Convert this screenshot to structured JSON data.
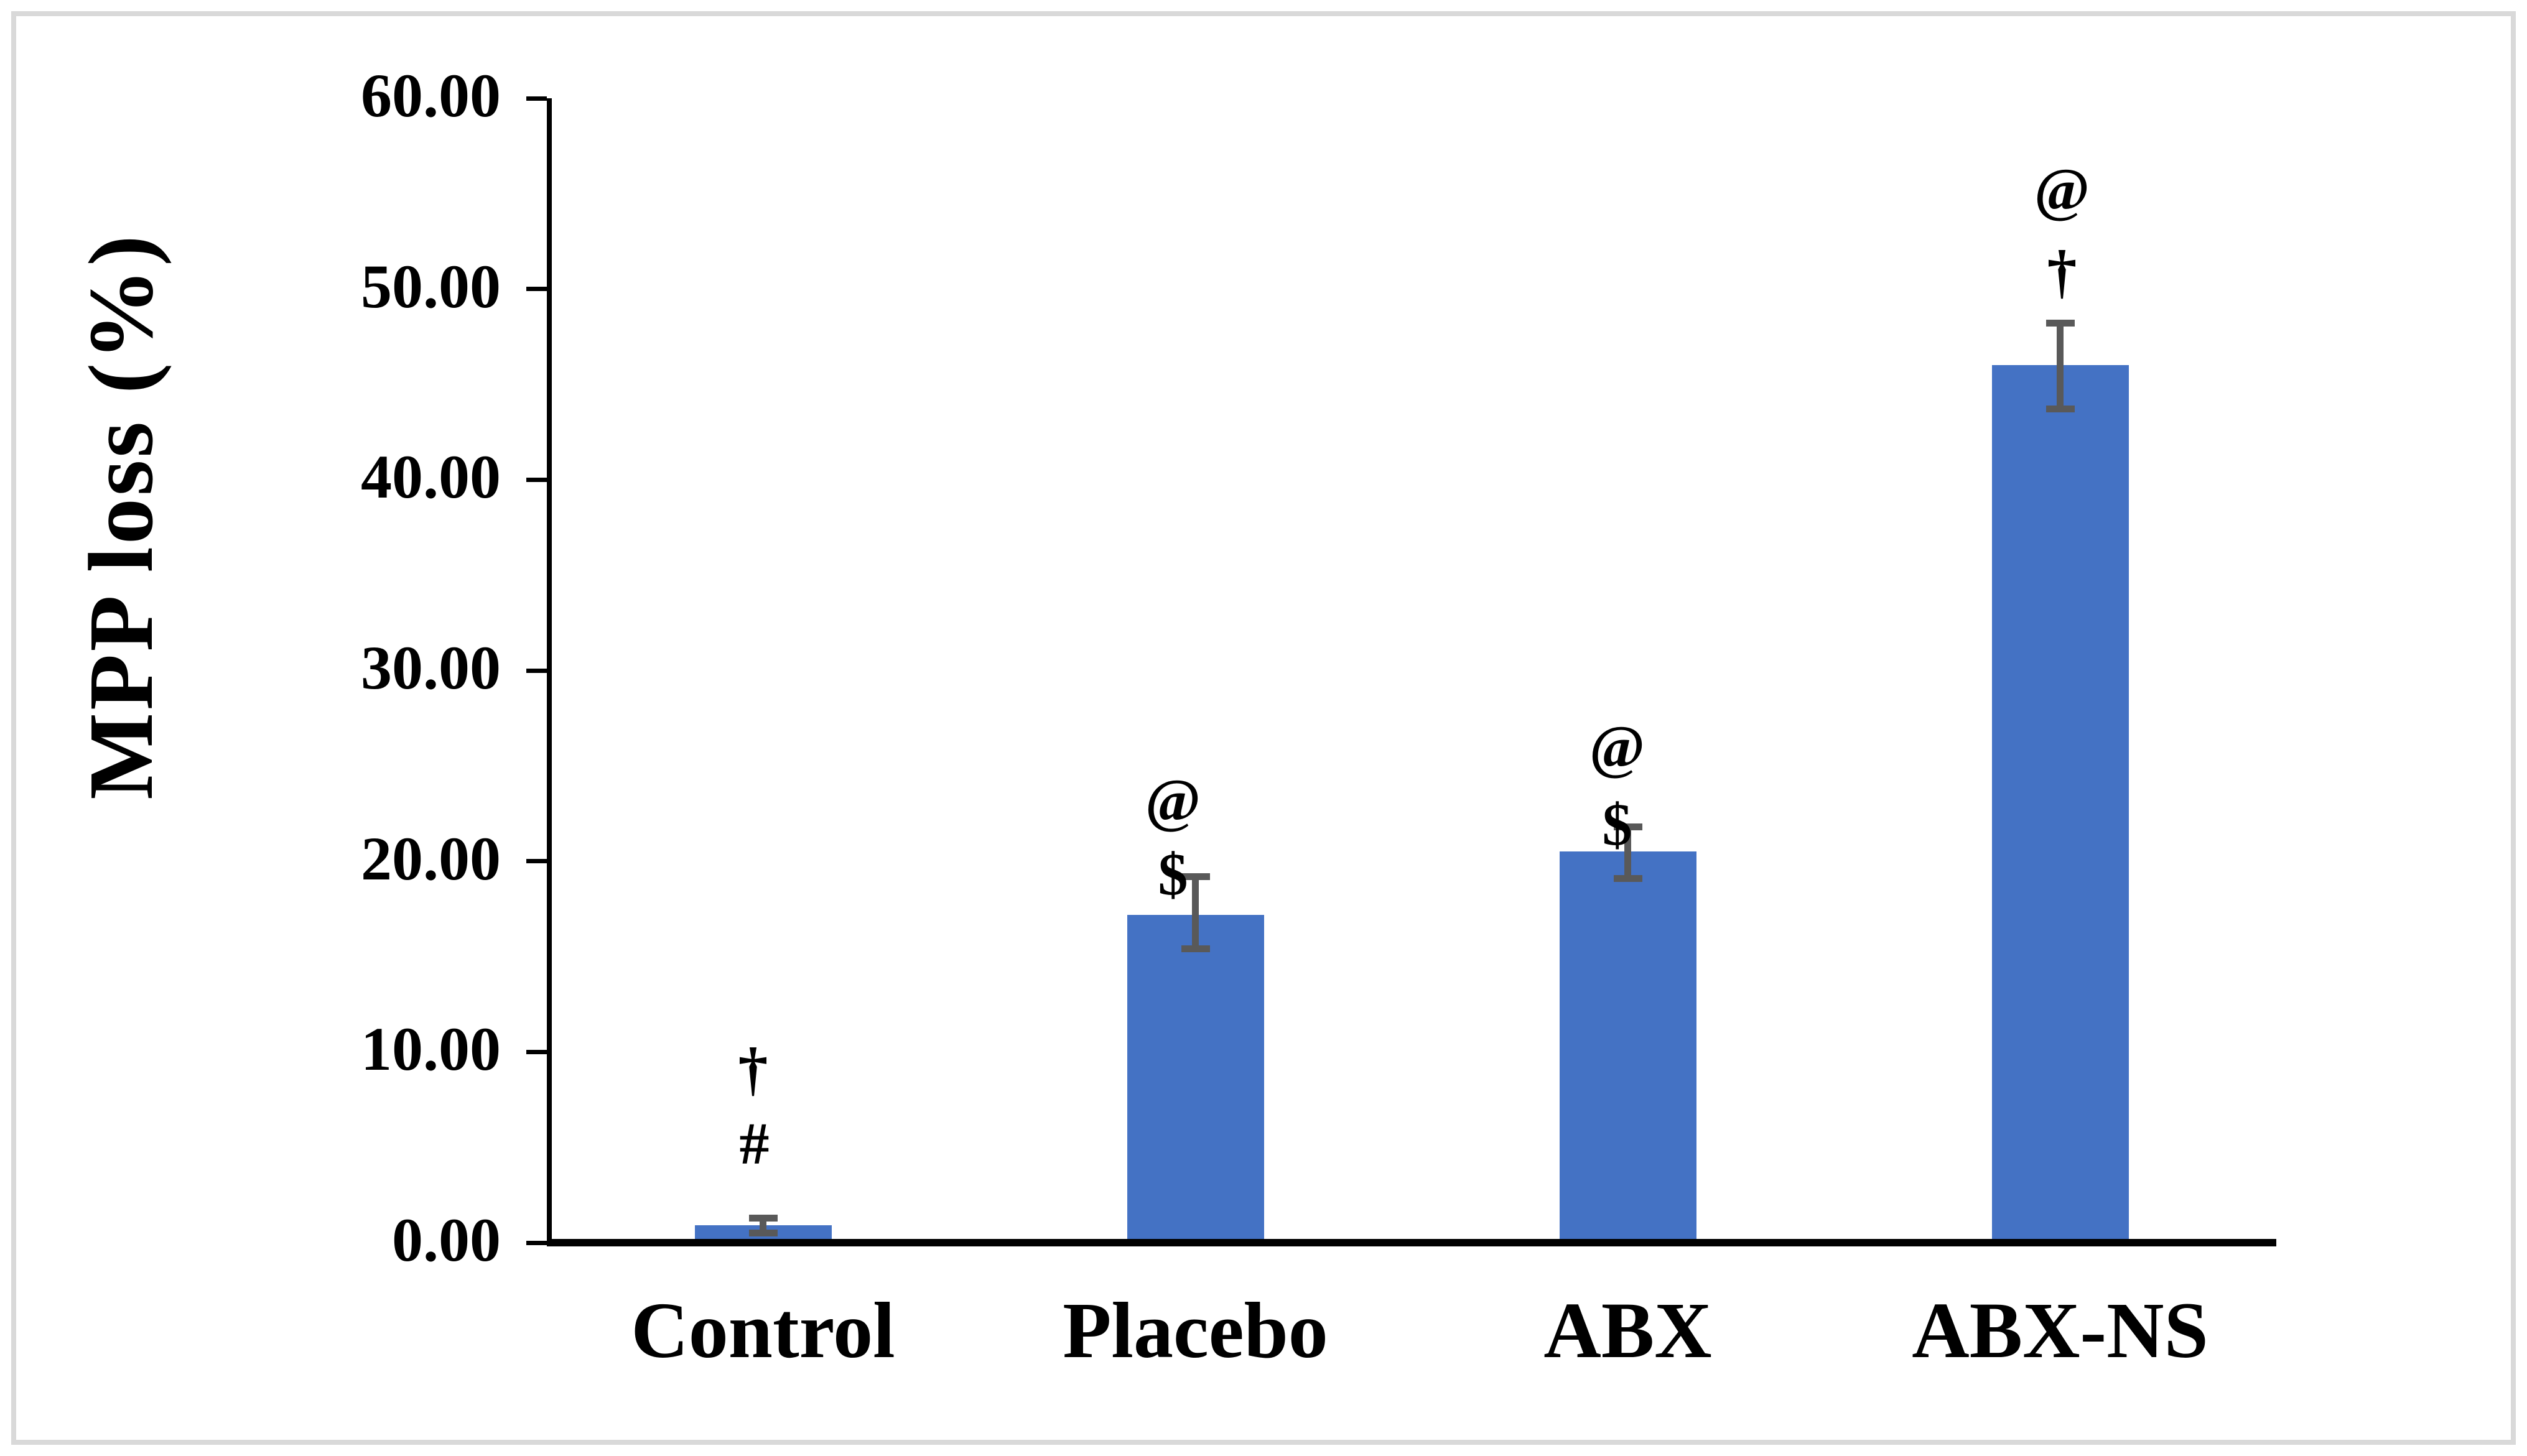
{
  "figure": {
    "background_color": "#ffffff",
    "border_color": "#d9d9d9"
  },
  "chart_data": {
    "type": "bar",
    "title": "",
    "xlabel": "",
    "ylabel": "MPP loss (%)",
    "ylim": [
      0,
      60
    ],
    "ytick_interval": 10,
    "ytick_labels": [
      "60.00",
      "50.00",
      "40.00",
      "30.00",
      "20.00",
      "10.00",
      "0.00"
    ],
    "grid": false,
    "legend": "none",
    "bar_color": "#4472c4",
    "error_bar_color": "#595959",
    "axis_color": "#000000",
    "text_color": "#000000",
    "categories": [
      "Control",
      "Placebo",
      "ABX",
      "ABX-NS"
    ],
    "values": [
      0.9,
      17.2,
      20.5,
      46.0
    ],
    "error_low": [
      0.5,
      15.4,
      19.1,
      43.7
    ],
    "error_high": [
      1.3,
      19.2,
      21.8,
      48.2
    ],
    "annotations": [
      [
        {
          "symbol": "†",
          "y_value": 9.1,
          "dx": -16
        },
        {
          "symbol": "#",
          "y_value": 5.2,
          "dx": -14
        }
      ],
      [
        {
          "symbol": "@",
          "y_value": 23.2,
          "dx": -36
        },
        {
          "symbol": "$",
          "y_value": 19.3,
          "dx": -36
        }
      ],
      [
        {
          "symbol": "@",
          "y_value": 26.0,
          "dx": -17
        },
        {
          "symbol": "$",
          "y_value": 21.9,
          "dx": -17
        }
      ],
      [
        {
          "symbol": "@",
          "y_value": 55.2,
          "dx": 3
        },
        {
          "symbol": "†",
          "y_value": 50.9,
          "dx": 3
        }
      ]
    ]
  }
}
